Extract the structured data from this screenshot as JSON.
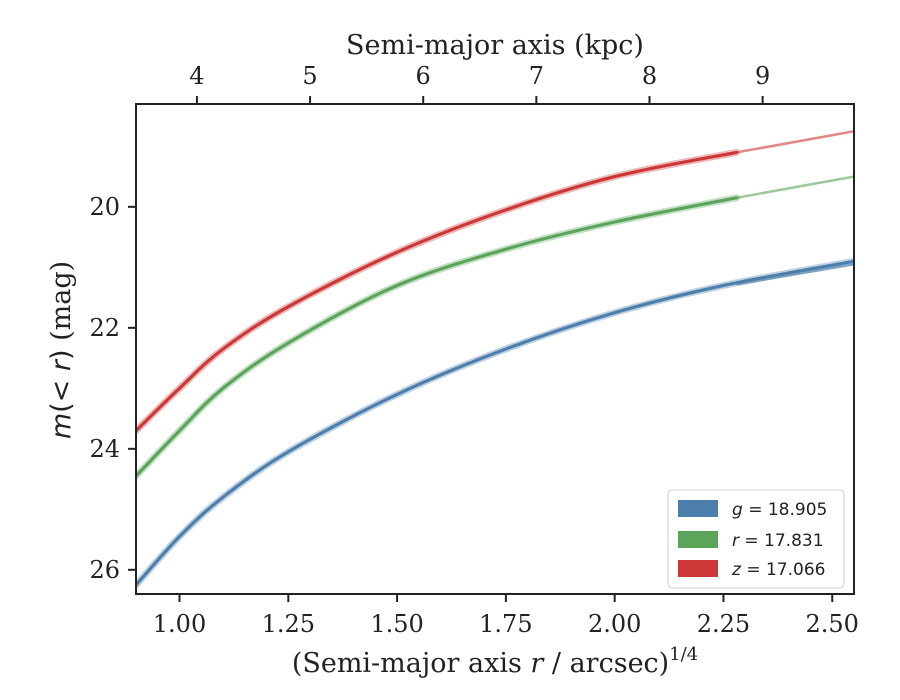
{
  "chart_data": {
    "type": "line",
    "xlabel": {
      "pre": "(Semi-major axis ",
      "var": "r",
      "post": " / arcsec)",
      "sup": "1/4"
    },
    "x2label": "Semi-major axis (kpc)",
    "ylabel": {
      "pre": "m(",
      "mid": "< r",
      "post": ") (mag)"
    },
    "xlim": [
      0.9,
      2.55
    ],
    "ylim": [
      26.4,
      18.3
    ],
    "y_inverted": true,
    "x_ticks": [
      1.0,
      1.25,
      1.5,
      1.75,
      2.0,
      2.25,
      2.5
    ],
    "x_tick_labels": [
      "1.00",
      "1.25",
      "1.50",
      "1.75",
      "2.00",
      "2.25",
      "2.50"
    ],
    "y_ticks": [
      20,
      22,
      24,
      26
    ],
    "y_tick_labels": [
      "20",
      "22",
      "24",
      "26"
    ],
    "top_ticks_kpc": [
      4,
      5,
      6,
      7,
      8,
      9
    ],
    "top_tick_x": [
      1.04,
      1.3,
      1.56,
      1.82,
      2.08,
      2.34
    ],
    "top_tick_labels": [
      "4",
      "5",
      "6",
      "7",
      "8",
      "9"
    ],
    "legend": {
      "placement": "lower-right",
      "entries": [
        {
          "var": "g",
          "text": " = 18.905"
        },
        {
          "var": "r",
          "text": " = 17.831"
        },
        {
          "var": "z",
          "text": " = 17.066"
        }
      ]
    },
    "series": [
      {
        "name": "g",
        "color": "#4c7fac",
        "x": [
          0.9,
          1.0,
          1.1,
          1.25,
          1.5,
          1.75,
          2.0,
          2.25,
          2.55
        ],
        "y": [
          26.25,
          25.45,
          24.8,
          24.05,
          23.1,
          22.35,
          21.75,
          21.3,
          20.9
        ],
        "x_ext": [
          2.28,
          2.55
        ],
        "y_ext": [
          21.28,
          20.95
        ]
      },
      {
        "name": "r",
        "color": "#5aa55a",
        "x": [
          0.9,
          1.0,
          1.1,
          1.25,
          1.5,
          1.75,
          2.0,
          2.28
        ],
        "y": [
          24.45,
          23.7,
          23.0,
          22.25,
          21.3,
          20.7,
          20.25,
          19.85
        ],
        "x_ext": [
          2.28,
          2.55
        ],
        "y_ext": [
          19.85,
          19.5
        ]
      },
      {
        "name": "z",
        "color": "#cc3838",
        "x": [
          0.9,
          1.0,
          1.1,
          1.25,
          1.5,
          1.75,
          2.0,
          2.28
        ],
        "y": [
          23.7,
          23.0,
          22.35,
          21.65,
          20.75,
          20.05,
          19.5,
          19.1
        ],
        "x_ext": [
          2.28,
          2.55
        ],
        "y_ext": [
          19.1,
          18.75
        ]
      }
    ]
  }
}
